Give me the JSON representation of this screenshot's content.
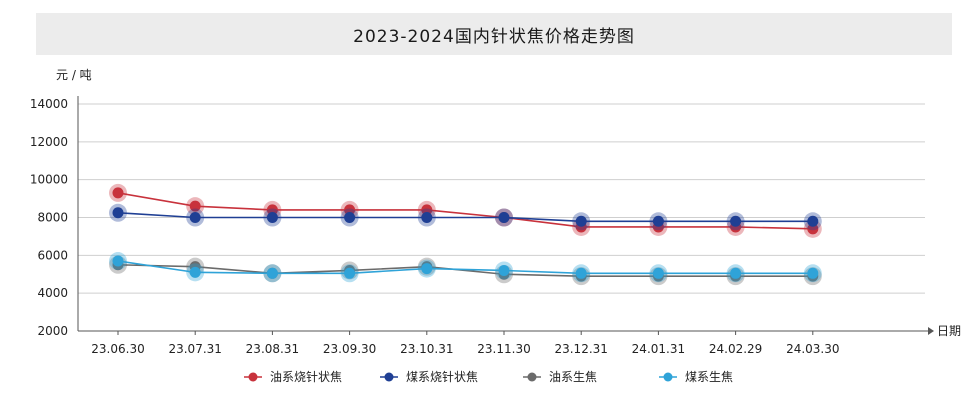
{
  "chart_data": {
    "type": "line",
    "title": "2023-2024国内针状焦价格走势图",
    "ylabel": "元 / 吨",
    "xlabel": "日期",
    "ylim": [
      2000,
      14000
    ],
    "yticks": [
      2000,
      4000,
      6000,
      8000,
      10000,
      12000,
      14000
    ],
    "grid": true,
    "legend_position": "bottom",
    "categories": [
      "23.06.30",
      "23.07.31",
      "23.08.31",
      "23.09.30",
      "23.10.31",
      "23.11.30",
      "23.12.31",
      "24.01.31",
      "24.02.29",
      "24.03.30"
    ],
    "series": [
      {
        "name": "油系烧针状焦",
        "color": "#c8323c",
        "values": [
          9300,
          8600,
          8400,
          8400,
          8400,
          8000,
          7500,
          7500,
          7500,
          7400
        ]
      },
      {
        "name": "煤系烧针状焦",
        "color": "#1f3f94",
        "values": [
          8250,
          8000,
          8000,
          8000,
          8000,
          8000,
          7800,
          7800,
          7800,
          7800
        ]
      },
      {
        "name": "油系生焦",
        "color": "#6b6b6b",
        "values": [
          5500,
          5400,
          5050,
          5200,
          5400,
          5000,
          4900,
          4900,
          4900,
          4900
        ]
      },
      {
        "name": "煤系生焦",
        "color": "#2fa3d8",
        "values": [
          5700,
          5100,
          5050,
          5050,
          5300,
          5200,
          5050,
          5050,
          5050,
          5050
        ]
      }
    ]
  }
}
